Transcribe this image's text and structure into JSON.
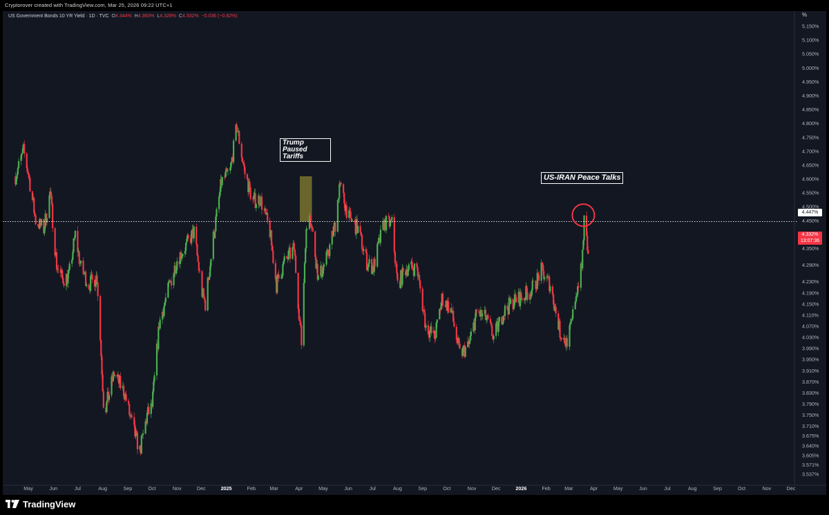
{
  "caption": "Cryptorover created with TradingView.com, Mar 25, 2026 09:22 UTC+1",
  "legend": {
    "symbol": "US Government Bonds 10 YR Yield · 1D · TVC",
    "o_label": "O",
    "o_value": "4.344%",
    "h_label": "H",
    "h_value": "4.360%",
    "l_label": "L",
    "l_value": "4.328%",
    "c_label": "C",
    "c_value": "4.332%",
    "change": "−0.036 (−0.82%)"
  },
  "axis": {
    "unit_label": "%",
    "current_line_label": "4.447%",
    "last_price_label": "4.332%",
    "countdown_label": "13:07:36"
  },
  "annotations": {
    "tariffs": "Trump Paused Tariffs",
    "iran": "US-IRAN Peace Talks"
  },
  "footer": {
    "brand": "TradingView"
  },
  "colors": {
    "up": "#4caf50",
    "down": "#f23645",
    "background": "#131722",
    "highlight": "#d4c53a"
  },
  "chart_data": {
    "type": "line",
    "title": "US Government Bonds 10 YR Yield · 1D · TVC",
    "xlabel": "",
    "ylabel": "",
    "ylim": [
      3.53,
      5.17
    ],
    "y_ticks": [
      "5.150%",
      "5.100%",
      "5.050%",
      "5.000%",
      "4.950%",
      "4.900%",
      "4.850%",
      "4.800%",
      "4.750%",
      "4.700%",
      "4.650%",
      "4.600%",
      "4.550%",
      "4.500%",
      "4.450%",
      "4.400%",
      "4.350%",
      "4.290%",
      "4.230%",
      "4.190%",
      "4.150%",
      "4.110%",
      "4.070%",
      "4.030%",
      "3.990%",
      "3.950%",
      "3.910%",
      "3.870%",
      "3.830%",
      "3.790%",
      "3.750%",
      "3.710%",
      "3.675%",
      "3.640%",
      "3.605%",
      "3.571%",
      "3.537%"
    ],
    "x_ticks": [
      "May",
      "Jun",
      "Jul",
      "Aug",
      "Sep",
      "Oct",
      "Nov",
      "Dec",
      "2025",
      "Feb",
      "Mar",
      "Apr",
      "May",
      "Jun",
      "Jul",
      "Aug",
      "Sep",
      "Oct",
      "Nov",
      "Dec",
      "2026",
      "Feb",
      "Mar",
      "Apr",
      "May",
      "Jun",
      "Jul",
      "Aug",
      "Sep",
      "Oct",
      "Nov",
      "Dec"
    ],
    "series": [
      {
        "x": [
          "2024-04-15",
          "2024-04-25",
          "2024-05-01",
          "2024-05-10",
          "2024-05-20",
          "2024-05-28",
          "2024-06-05",
          "2024-06-12",
          "2024-06-20",
          "2024-06-28",
          "2024-07-05",
          "2024-07-15",
          "2024-07-25",
          "2024-08-02",
          "2024-08-05",
          "2024-08-15",
          "2024-08-28",
          "2024-09-05",
          "2024-09-16",
          "2024-09-25",
          "2024-10-01",
          "2024-10-10",
          "2024-10-22",
          "2024-11-01",
          "2024-11-12",
          "2024-11-22",
          "2024-12-02",
          "2024-12-06",
          "2024-12-16",
          "2024-12-26",
          "2025-01-06",
          "2025-01-14",
          "2025-01-24",
          "2025-02-03",
          "2025-02-12",
          "2025-02-24",
          "2025-03-04",
          "2025-03-14",
          "2025-03-26",
          "2025-04-04",
          "2025-04-09",
          "2025-04-14",
          "2025-04-25",
          "2025-05-06",
          "2025-05-16",
          "2025-05-21",
          "2025-06-02",
          "2025-06-13",
          "2025-06-24",
          "2025-07-02",
          "2025-07-15",
          "2025-07-25",
          "2025-08-01",
          "2025-08-12",
          "2025-08-25",
          "2025-09-05",
          "2025-09-16",
          "2025-09-25",
          "2025-10-06",
          "2025-10-17",
          "2025-10-28",
          "2025-11-07",
          "2025-11-18",
          "2025-11-28",
          "2025-12-10",
          "2025-12-22",
          "2026-01-05",
          "2026-01-16",
          "2026-01-26",
          "2026-02-06",
          "2026-02-18",
          "2026-02-26",
          "2026-03-04",
          "2026-03-10",
          "2026-03-17",
          "2026-03-20",
          "2026-03-25"
        ],
        "values": [
          4.61,
          4.7,
          4.62,
          4.45,
          4.42,
          4.55,
          4.29,
          4.24,
          4.25,
          4.4,
          4.28,
          4.22,
          4.25,
          3.8,
          3.78,
          3.9,
          3.83,
          3.73,
          3.62,
          3.75,
          3.78,
          4.08,
          4.21,
          4.31,
          4.36,
          4.41,
          4.19,
          4.15,
          4.39,
          4.59,
          4.63,
          4.79,
          4.62,
          4.52,
          4.53,
          4.41,
          4.22,
          4.3,
          4.35,
          4.01,
          4.38,
          4.49,
          4.24,
          4.32,
          4.44,
          4.58,
          4.46,
          4.42,
          4.3,
          4.28,
          4.44,
          4.44,
          4.22,
          4.28,
          4.28,
          4.07,
          4.03,
          4.17,
          4.13,
          3.97,
          4.0,
          4.12,
          4.1,
          4.03,
          4.12,
          4.16,
          4.18,
          4.21,
          4.27,
          4.22,
          4.05,
          4.01,
          4.07,
          4.19,
          4.28,
          4.45,
          4.332
        ]
      }
    ],
    "grid": false
  }
}
